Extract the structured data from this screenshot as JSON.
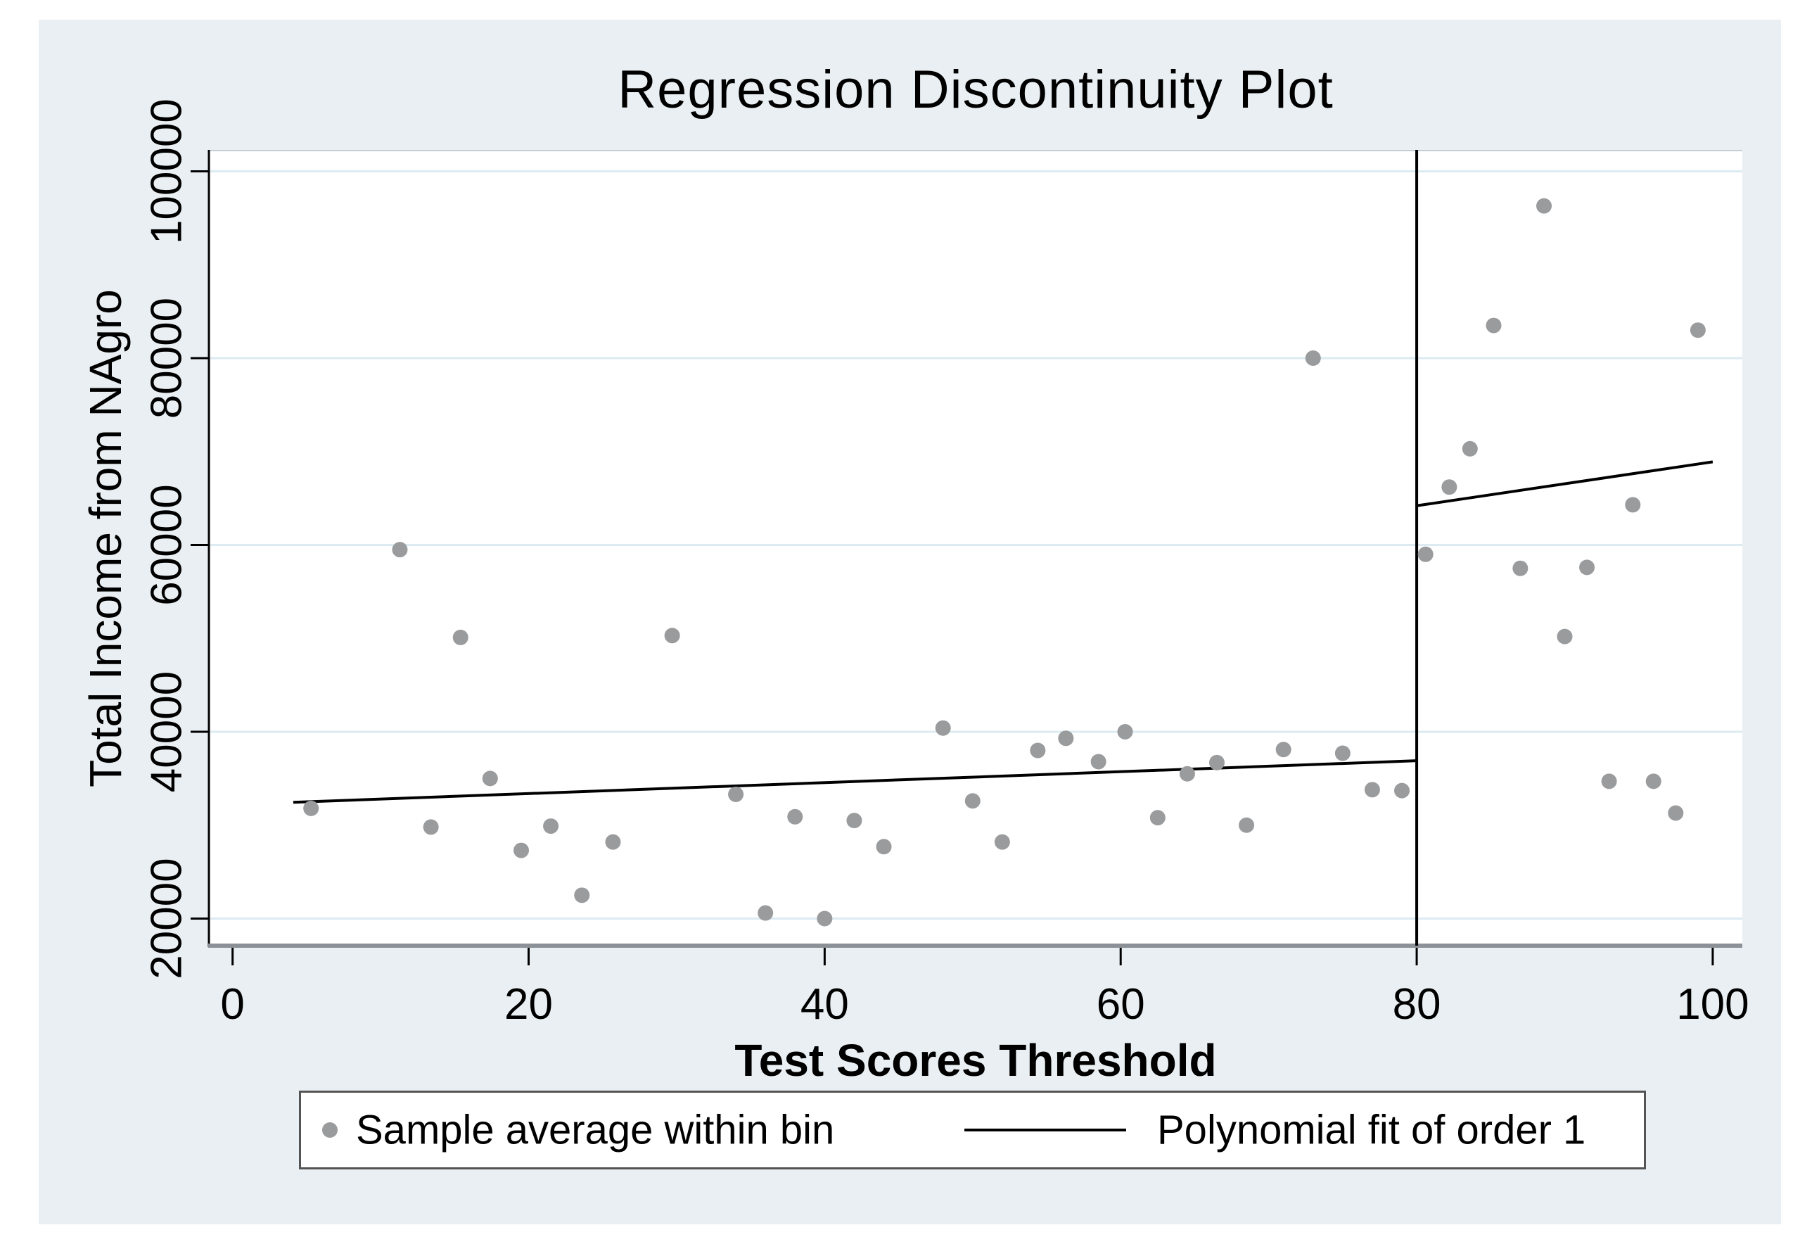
{
  "page": {
    "title": "Regression Discontinuity Plot"
  },
  "chart_data": {
    "type": "scatter",
    "title": "Regression Discontinuity Plot",
    "xlabel": "Test Scores Threshold",
    "ylabel": "Total Income from NAgro",
    "x_ticks": [
      0,
      20,
      40,
      60,
      80,
      100
    ],
    "y_ticks": [
      20000,
      40000,
      60000,
      80000,
      100000
    ],
    "xlim": [
      -1.6,
      102
    ],
    "ylim": [
      17100,
      102300
    ],
    "grid": "horizontal-only",
    "threshold_x": 80,
    "series": [
      {
        "name": "Sample average within bin",
        "type": "scatter",
        "points": [
          [
            5.3,
            31800
          ],
          [
            11.3,
            59500
          ],
          [
            13.4,
            29800
          ],
          [
            15.4,
            50100
          ],
          [
            17.4,
            35000
          ],
          [
            19.5,
            27300
          ],
          [
            21.5,
            29900
          ],
          [
            23.6,
            22500
          ],
          [
            25.7,
            28200
          ],
          [
            29.7,
            50300
          ],
          [
            34,
            33300
          ],
          [
            36,
            20600
          ],
          [
            38,
            30900
          ],
          [
            40,
            20000
          ],
          [
            42,
            30500
          ],
          [
            44,
            27700
          ],
          [
            48,
            40400
          ],
          [
            50,
            32600
          ],
          [
            52,
            28200
          ],
          [
            54.4,
            38000
          ],
          [
            56.3,
            39300
          ],
          [
            58.5,
            36800
          ],
          [
            60.3,
            40000
          ],
          [
            62.5,
            30800
          ],
          [
            64.5,
            35500
          ],
          [
            66.5,
            36700
          ],
          [
            68.5,
            30000
          ],
          [
            71,
            38100
          ],
          [
            73,
            80000
          ],
          [
            75,
            37700
          ],
          [
            77,
            33800
          ],
          [
            79,
            33700
          ],
          [
            80.6,
            59000
          ],
          [
            82.2,
            66200
          ],
          [
            83.6,
            70300
          ],
          [
            85.2,
            83500
          ],
          [
            87,
            57500
          ],
          [
            88.6,
            96300
          ],
          [
            90,
            50200
          ],
          [
            91.5,
            57600
          ],
          [
            93,
            34700
          ],
          [
            94.6,
            64300
          ],
          [
            96,
            34700
          ],
          [
            97.5,
            31300
          ],
          [
            99,
            83000
          ]
        ]
      },
      {
        "name": "Polynomial fit of order 1",
        "type": "line",
        "segments": [
          {
            "x": [
              4.1,
              80
            ],
            "y": [
              32450,
              36900
            ]
          },
          {
            "x": [
              80,
              100
            ],
            "y": [
              64200,
              68900
            ]
          }
        ]
      }
    ],
    "legend": {
      "position": "bottom",
      "entries": [
        {
          "marker": "dot",
          "label": "Sample average within bin"
        },
        {
          "marker": "line",
          "label": "Polynomial fit of order 1"
        }
      ]
    },
    "colors": {
      "dot": "#9a9b9d",
      "fit_line": "#000000",
      "threshold_line": "#000000",
      "grid": "#dcebf2",
      "plot_bg": "#ffffff",
      "canvas_bg": "#e9eff2",
      "bottom_spine": "#8b9196",
      "left_spine": "#000000",
      "text": "#000000",
      "legend_border": "#545454"
    }
  }
}
